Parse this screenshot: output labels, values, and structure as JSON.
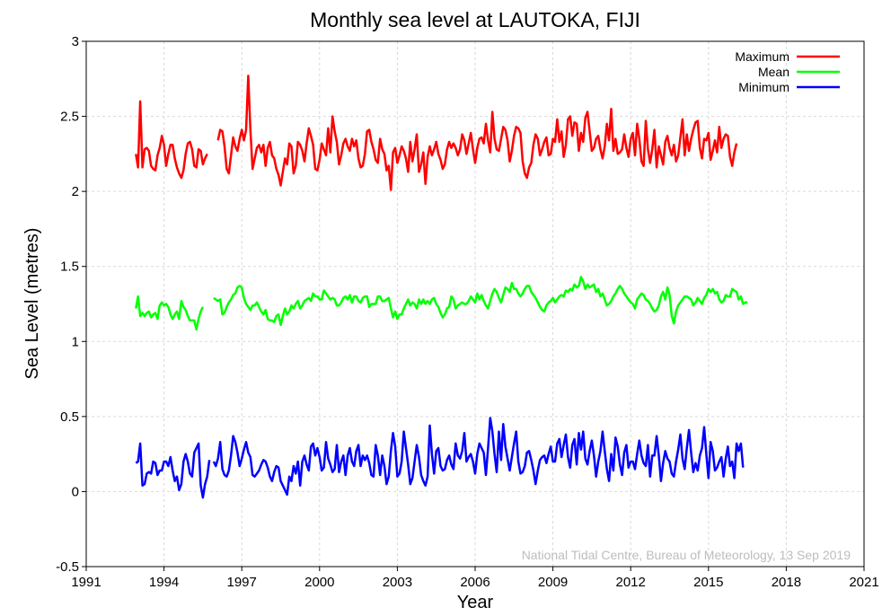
{
  "chart_data": {
    "type": "line",
    "title": "Monthly sea level at LAUTOKA, FIJI",
    "xlabel": "Year",
    "ylabel": "Sea Level (metres)",
    "xlim": [
      1991,
      2021
    ],
    "ylim": [
      -0.5,
      3
    ],
    "x_ticks": [
      "1991",
      "1994",
      "1997",
      "2000",
      "2003",
      "2006",
      "2009",
      "2012",
      "2015",
      "2018",
      "2021"
    ],
    "y_ticks": [
      "-0.5",
      "0",
      "0.5",
      "1",
      "1.5",
      "2",
      "2.5",
      "3"
    ],
    "grid": true,
    "legend_position": "top-right",
    "credit": "National Tidal Centre, Bureau of Meteorology, 13 Sep 2019",
    "x_start_year": 1992.917,
    "x_step_years": 0.08333,
    "series": [
      {
        "name": "Maximum",
        "color": "#ff0000",
        "values": [
          2.25,
          2.16,
          2.6,
          2.16,
          2.28,
          2.29,
          2.27,
          2.17,
          2.15,
          2.14,
          2.24,
          2.29,
          2.37,
          2.31,
          2.17,
          2.25,
          2.31,
          2.31,
          2.22,
          2.16,
          2.12,
          2.09,
          2.14,
          2.25,
          2.32,
          2.33,
          2.28,
          2.17,
          2.16,
          2.28,
          2.27,
          2.18,
          2.22,
          2.25,
          null,
          null,
          null,
          null,
          2.34,
          2.41,
          2.4,
          2.3,
          2.15,
          2.12,
          2.24,
          2.36,
          2.3,
          2.27,
          2.35,
          2.41,
          2.34,
          2.41,
          2.77,
          2.41,
          2.15,
          2.22,
          2.29,
          2.31,
          2.26,
          2.31,
          2.17,
          2.29,
          2.33,
          2.24,
          2.22,
          2.15,
          2.11,
          2.04,
          2.13,
          2.22,
          2.18,
          2.32,
          2.3,
          2.12,
          2.17,
          2.33,
          2.31,
          2.27,
          2.2,
          2.32,
          2.42,
          2.37,
          2.31,
          2.15,
          2.14,
          2.21,
          2.32,
          2.28,
          2.24,
          2.42,
          2.26,
          2.5,
          2.4,
          2.33,
          2.18,
          2.24,
          2.32,
          2.35,
          2.3,
          2.27,
          2.35,
          2.3,
          2.34,
          2.22,
          2.16,
          2.17,
          2.25,
          2.4,
          2.41,
          2.33,
          2.28,
          2.21,
          2.19,
          2.35,
          2.28,
          2.25,
          2.14,
          2.17,
          2.01,
          2.26,
          2.29,
          2.19,
          2.24,
          2.3,
          2.27,
          2.22,
          2.13,
          2.33,
          2.2,
          2.28,
          2.38,
          2.13,
          2.18,
          2.26,
          2.05,
          2.23,
          2.3,
          2.24,
          2.28,
          2.33,
          2.25,
          2.21,
          2.15,
          2.18,
          2.28,
          2.33,
          2.29,
          2.32,
          2.29,
          2.24,
          2.28,
          2.38,
          2.34,
          2.25,
          2.32,
          2.39,
          2.28,
          2.19,
          2.29,
          2.35,
          2.36,
          2.32,
          2.45,
          2.34,
          2.26,
          2.53,
          2.35,
          2.28,
          2.27,
          2.35,
          2.43,
          2.41,
          2.34,
          2.2,
          2.27,
          2.37,
          2.43,
          2.42,
          2.39,
          2.2,
          2.12,
          2.09,
          2.16,
          2.19,
          2.31,
          2.38,
          2.35,
          2.24,
          2.28,
          2.33,
          2.36,
          2.24,
          2.25,
          2.35,
          2.33,
          2.48,
          2.33,
          2.4,
          2.23,
          2.31,
          2.48,
          2.5,
          2.37,
          2.46,
          2.45,
          2.27,
          2.39,
          2.33,
          2.49,
          2.53,
          2.4,
          2.27,
          2.29,
          2.35,
          2.37,
          2.28,
          2.22,
          2.3,
          2.45,
          2.34,
          2.55,
          2.27,
          2.35,
          2.25,
          2.26,
          2.28,
          2.38,
          2.29,
          2.23,
          2.35,
          2.39,
          2.24,
          2.45,
          2.35,
          2.2,
          2.17,
          2.47,
          2.28,
          2.19,
          2.28,
          2.41,
          2.16,
          2.3,
          2.24,
          2.18,
          2.33,
          2.37,
          2.29,
          2.24,
          2.31,
          2.2,
          2.24,
          2.36,
          2.48,
          2.24,
          2.38,
          2.27,
          2.35,
          2.41,
          2.46,
          2.47,
          2.29,
          2.22,
          2.35,
          2.34,
          2.39,
          2.21,
          2.27,
          2.34,
          2.26,
          2.43,
          2.29,
          2.35,
          2.38,
          2.37,
          2.23,
          2.17,
          2.26,
          2.32
        ]
      },
      {
        "name": "Mean",
        "color": "#00ff00",
        "values": [
          1.22,
          1.3,
          1.17,
          1.19,
          1.17,
          1.19,
          1.2,
          1.16,
          1.18,
          1.19,
          1.15,
          1.24,
          1.26,
          1.24,
          1.25,
          1.23,
          1.18,
          1.15,
          1.18,
          1.2,
          1.15,
          1.27,
          1.23,
          1.21,
          1.17,
          1.14,
          1.14,
          1.14,
          1.08,
          1.15,
          1.2,
          1.23,
          null,
          null,
          null,
          null,
          1.29,
          1.28,
          1.27,
          1.28,
          1.18,
          1.19,
          1.23,
          1.26,
          1.28,
          1.31,
          1.32,
          1.36,
          1.37,
          1.36,
          1.29,
          1.25,
          1.23,
          1.21,
          1.24,
          1.24,
          1.26,
          1.23,
          1.2,
          1.18,
          1.21,
          1.15,
          1.14,
          1.14,
          1.13,
          1.17,
          1.18,
          1.11,
          1.17,
          1.22,
          1.18,
          1.2,
          1.24,
          1.22,
          1.25,
          1.27,
          1.22,
          1.24,
          1.27,
          1.28,
          1.29,
          1.27,
          1.32,
          1.3,
          1.3,
          1.28,
          1.28,
          1.34,
          1.32,
          1.3,
          1.28,
          1.29,
          1.28,
          1.24,
          1.24,
          1.26,
          1.29,
          1.3,
          1.28,
          1.31,
          1.26,
          1.3,
          1.3,
          1.27,
          1.26,
          1.29,
          1.3,
          1.3,
          1.23,
          1.25,
          1.25,
          1.25,
          1.3,
          1.3,
          1.27,
          1.27,
          1.28,
          1.29,
          1.22,
          1.16,
          1.2,
          1.15,
          1.18,
          1.18,
          1.22,
          1.25,
          1.28,
          1.24,
          1.26,
          1.25,
          1.22,
          1.28,
          1.25,
          1.28,
          1.25,
          1.27,
          1.25,
          1.28,
          1.29,
          1.25,
          1.23,
          1.19,
          1.16,
          1.18,
          1.22,
          1.23,
          1.3,
          1.28,
          1.22,
          1.24,
          1.25,
          1.26,
          1.25,
          1.25,
          1.27,
          1.3,
          1.28,
          1.26,
          1.32,
          1.28,
          1.31,
          1.27,
          1.24,
          1.22,
          1.27,
          1.32,
          1.35,
          1.33,
          1.29,
          1.26,
          1.31,
          1.36,
          1.35,
          1.33,
          1.39,
          1.35,
          1.35,
          1.32,
          1.3,
          1.32,
          1.35,
          1.37,
          1.37,
          1.33,
          1.31,
          1.29,
          1.26,
          1.23,
          1.21,
          1.2,
          1.24,
          1.26,
          1.27,
          1.29,
          1.26,
          1.28,
          1.3,
          1.31,
          1.3,
          1.34,
          1.33,
          1.35,
          1.34,
          1.38,
          1.36,
          1.37,
          1.43,
          1.4,
          1.35,
          1.38,
          1.36,
          1.37,
          1.38,
          1.33,
          1.35,
          1.3,
          1.32,
          1.28,
          1.24,
          1.25,
          1.27,
          1.3,
          1.32,
          1.35,
          1.37,
          1.35,
          1.32,
          1.3,
          1.28,
          1.26,
          1.25,
          1.22,
          1.28,
          1.3,
          1.32,
          1.31,
          1.28,
          1.27,
          1.25,
          1.22,
          1.2,
          1.21,
          1.24,
          1.3,
          1.33,
          1.28,
          1.36,
          1.31,
          1.17,
          1.12,
          1.2,
          1.24,
          1.26,
          1.28,
          1.3,
          1.3,
          1.29,
          1.28,
          1.24,
          1.26,
          1.29,
          1.27,
          1.25,
          1.29,
          1.31,
          1.35,
          1.33,
          1.35,
          1.32,
          1.33,
          1.28,
          1.26,
          1.27,
          1.31,
          1.3,
          1.3,
          1.35,
          1.34,
          1.33,
          1.28,
          1.3,
          1.25,
          1.26,
          1.26
        ]
      },
      {
        "name": "Minimum",
        "color": "#0000ff",
        "values": [
          0.19,
          0.2,
          0.32,
          0.04,
          0.05,
          0.12,
          0.13,
          0.12,
          0.2,
          0.19,
          0.11,
          0.14,
          0.14,
          0.2,
          0.2,
          0.17,
          0.23,
          0.14,
          0.07,
          0.1,
          0.01,
          0.05,
          0.2,
          0.25,
          0.2,
          0.12,
          0.1,
          0.26,
          0.29,
          0.32,
          0.04,
          -0.04,
          0.05,
          0.1,
          0.21,
          null,
          0.2,
          0.17,
          0.22,
          0.33,
          0.15,
          0.11,
          0.1,
          0.14,
          0.24,
          0.37,
          0.33,
          0.26,
          0.17,
          0.22,
          0.28,
          0.33,
          0.26,
          0.23,
          0.11,
          0.1,
          0.12,
          0.14,
          0.18,
          0.21,
          0.2,
          0.16,
          0.1,
          0.07,
          0.13,
          0.17,
          0.16,
          0.07,
          0.04,
          0.01,
          -0.02,
          0.1,
          0.07,
          0.17,
          0.12,
          0.2,
          0.04,
          0.2,
          0.24,
          0.18,
          0.14,
          0.3,
          0.32,
          0.24,
          0.29,
          0.23,
          0.14,
          0.16,
          0.33,
          0.22,
          0.18,
          0.13,
          0.15,
          0.31,
          0.13,
          0.2,
          0.24,
          0.11,
          0.24,
          0.29,
          0.2,
          0.17,
          0.27,
          0.31,
          0.17,
          0.24,
          0.21,
          0.24,
          0.19,
          0.11,
          0.1,
          0.31,
          0.24,
          0.11,
          0.24,
          0.17,
          0.05,
          0.1,
          0.27,
          0.39,
          0.3,
          0.1,
          0.12,
          0.2,
          0.4,
          0.29,
          0.18,
          0.05,
          0.09,
          0.2,
          0.31,
          0.23,
          0.11,
          0.07,
          0.04,
          0.1,
          0.44,
          0.25,
          0.12,
          0.27,
          0.29,
          0.17,
          0.14,
          0.15,
          0.21,
          0.24,
          0.18,
          0.15,
          0.32,
          0.24,
          0.22,
          0.27,
          0.39,
          0.2,
          0.23,
          0.25,
          0.2,
          0.12,
          0.25,
          0.32,
          0.29,
          0.26,
          0.11,
          0.29,
          0.49,
          0.4,
          0.25,
          0.13,
          0.4,
          0.21,
          0.45,
          0.3,
          0.22,
          0.14,
          0.23,
          0.32,
          0.4,
          0.2,
          0.12,
          0.13,
          0.17,
          0.26,
          0.27,
          0.21,
          0.14,
          0.05,
          0.14,
          0.21,
          0.23,
          0.24,
          0.19,
          0.25,
          0.3,
          0.2,
          0.2,
          0.32,
          0.35,
          0.23,
          0.31,
          0.38,
          0.23,
          0.16,
          0.31,
          0.35,
          0.18,
          0.39,
          0.28,
          0.4,
          0.22,
          0.18,
          0.27,
          0.34,
          0.24,
          0.1,
          0.2,
          0.27,
          0.4,
          0.27,
          0.15,
          0.07,
          0.25,
          0.14,
          0.36,
          0.3,
          0.18,
          0.11,
          0.26,
          0.31,
          0.16,
          0.2,
          0.2,
          0.15,
          0.25,
          0.34,
          0.24,
          0.19,
          0.17,
          0.31,
          0.1,
          0.24,
          0.24,
          0.37,
          0.24,
          0.07,
          0.19,
          0.27,
          0.22,
          0.2,
          0.12,
          0.1,
          0.2,
          0.28,
          0.38,
          0.22,
          0.15,
          0.29,
          0.41,
          0.26,
          0.13,
          0.19,
          0.14,
          0.24,
          0.29,
          0.43,
          0.25,
          0.09,
          0.33,
          0.27,
          0.14,
          0.16,
          0.2,
          0.23,
          0.1,
          0.22,
          0.3,
          0.17,
          0.2,
          0.09,
          0.32,
          0.27,
          0.32,
          0.16
        ]
      }
    ]
  }
}
